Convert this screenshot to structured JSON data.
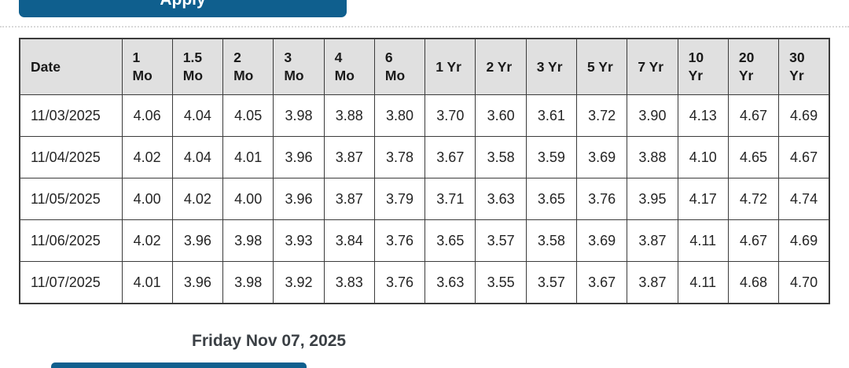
{
  "apply_button": {
    "label": "Apply"
  },
  "yield_table": {
    "columns": [
      "Date",
      "1\nMo",
      "1.5\nMo",
      "2\nMo",
      "3\nMo",
      "4\nMo",
      "6\nMo",
      "1 Yr",
      "2 Yr",
      "3 Yr",
      "5 Yr",
      "7 Yr",
      "10\nYr",
      "20\nYr",
      "30\nYr"
    ],
    "rows": [
      {
        "cells": [
          "11/03/2025",
          "4.06",
          "4.04",
          "4.05",
          "3.98",
          "3.88",
          "3.80",
          "3.70",
          "3.60",
          "3.61",
          "3.72",
          "3.90",
          "4.13",
          "4.67",
          "4.69"
        ]
      },
      {
        "cells": [
          "11/04/2025",
          "4.02",
          "4.04",
          "4.01",
          "3.96",
          "3.87",
          "3.78",
          "3.67",
          "3.58",
          "3.59",
          "3.69",
          "3.88",
          "4.10",
          "4.65",
          "4.67"
        ]
      },
      {
        "cells": [
          "11/05/2025",
          "4.00",
          "4.02",
          "4.00",
          "3.96",
          "3.87",
          "3.79",
          "3.71",
          "3.63",
          "3.65",
          "3.76",
          "3.95",
          "4.17",
          "4.72",
          "4.74"
        ]
      },
      {
        "cells": [
          "11/06/2025",
          "4.02",
          "3.96",
          "3.98",
          "3.93",
          "3.84",
          "3.76",
          "3.65",
          "3.57",
          "3.58",
          "3.69",
          "3.87",
          "4.11",
          "4.67",
          "4.69"
        ]
      },
      {
        "cells": [
          "11/07/2025",
          "4.01",
          "3.96",
          "3.98",
          "3.92",
          "3.83",
          "3.76",
          "3.63",
          "3.55",
          "3.57",
          "3.67",
          "3.87",
          "4.11",
          "4.68",
          "4.70"
        ]
      }
    ]
  },
  "footer": {
    "selected_date_label": "Friday Nov 07, 2025"
  },
  "colors": {
    "primary_blue": "#0f5f8e",
    "header_bg": "#e0e0e0",
    "table_border": "#3b3b3b"
  }
}
